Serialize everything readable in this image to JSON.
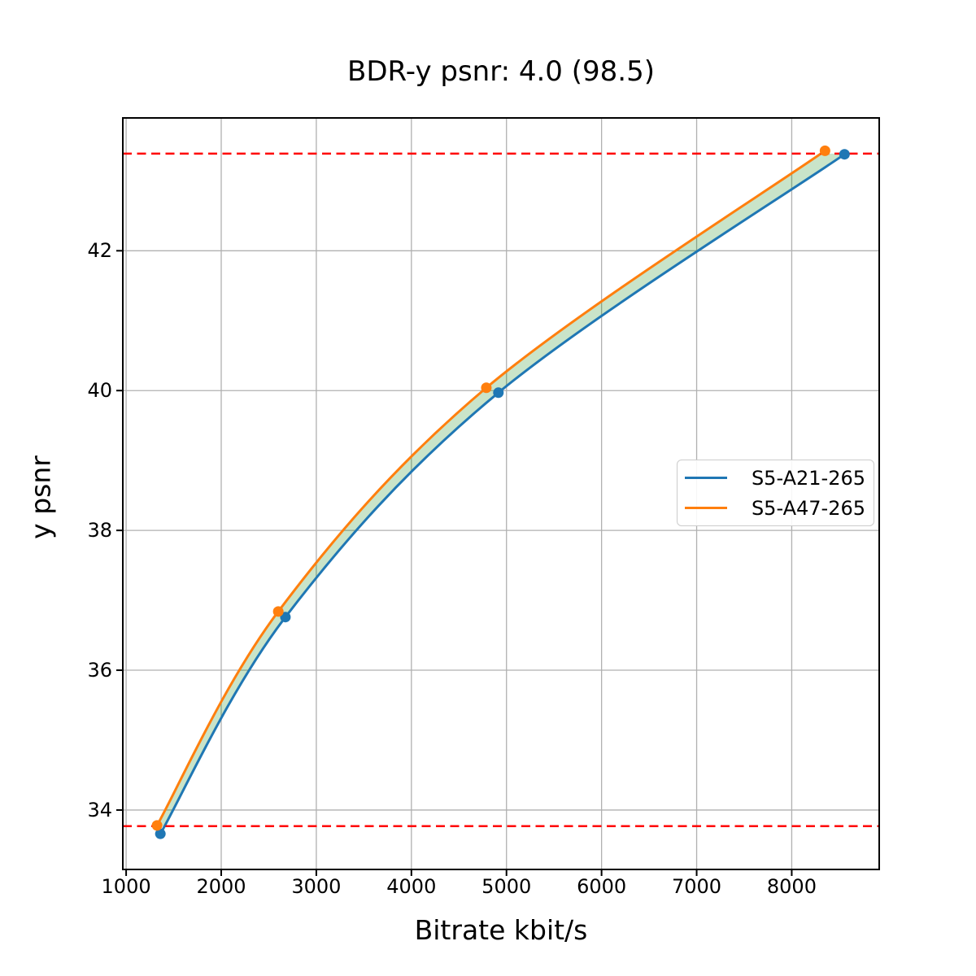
{
  "chart_data": {
    "type": "line",
    "title": "BDR-y psnr: 4.0 (98.5)",
    "xlabel": "Bitrate kbit/s",
    "ylabel": "y psnr",
    "xlim": [
      965,
      8920
    ],
    "ylim": [
      33.15,
      43.9
    ],
    "x_ticks": [
      1000,
      2000,
      3000,
      4000,
      5000,
      6000,
      7000,
      8000
    ],
    "y_ticks": [
      34,
      36,
      38,
      40,
      42
    ],
    "grid": true,
    "grid_color": "#b0b0b0",
    "legend_position": "center-right",
    "series": [
      {
        "name": "S5-A21-265",
        "color": "#1f77b4",
        "marker": "circle",
        "points": [
          [
            1360,
            33.66
          ],
          [
            2675,
            36.76
          ],
          [
            4915,
            39.97
          ],
          [
            8555,
            43.38
          ]
        ]
      },
      {
        "name": "S5-A47-265",
        "color": "#ff7f0e",
        "marker": "circle",
        "points": [
          [
            1325,
            33.78
          ],
          [
            2600,
            36.84
          ],
          [
            4788,
            40.04
          ],
          [
            8350,
            43.43
          ]
        ]
      }
    ],
    "hlines": {
      "values": [
        43.39,
        33.77
      ],
      "color": "#ff0000",
      "style": "dashed"
    },
    "fill_between": {
      "between": [
        "S5-A21-265",
        "S5-A47-265"
      ],
      "clip_y": [
        33.77,
        43.39
      ],
      "color": "#008000",
      "opacity": 0.21
    }
  }
}
